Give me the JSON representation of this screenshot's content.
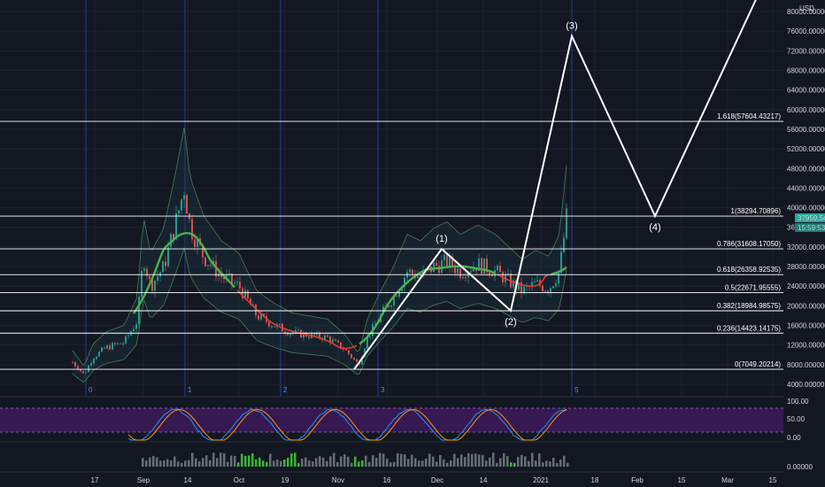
{
  "chart_data": {
    "type": "candlestick",
    "currency": "USD",
    "x_axis_labels": [
      "17",
      "Sep",
      "14",
      "Oct",
      "19",
      "Nov",
      "16",
      "Dec",
      "14",
      "2021",
      "18",
      "Feb",
      "15",
      "Mar",
      "15"
    ],
    "y_axis_labels": [
      "80000.00000",
      "76000.00000",
      "72000.00000",
      "68000.00000",
      "64000.00000",
      "60000.00000",
      "56000.00000",
      "52000.00000",
      "48000.00000",
      "44000.00000",
      "40000.00000",
      "36000.00000",
      "32000.00000",
      "28000.00000",
      "24000.00000",
      "20000.00000",
      "16000.00000",
      "12000.00000",
      "8000.00000",
      "4000.00000"
    ],
    "ylim": [
      2000,
      82000
    ],
    "last_price_label": "37959.54787",
    "countdown_label": "15:59:53",
    "fibonacci_levels": [
      {
        "label": "1.618(57604.43217)",
        "value": 57604.43217
      },
      {
        "label": "1(38294.70896)",
        "value": 38294.70896
      },
      {
        "label": "0.786(31608.17050)",
        "value": 31608.1705
      },
      {
        "label": "0.618(26358.92535)",
        "value": 26358.92535
      },
      {
        "label": "0.5(22671.95555)",
        "value": 22671.95555
      },
      {
        "label": "0.382(18984.98575)",
        "value": 18984.98575
      },
      {
        "label": "0.236(14423.14175)",
        "value": 14423.14175
      },
      {
        "label": "0(7049.20214)",
        "value": 7049.20214
      }
    ],
    "elliott_wave": {
      "points": [
        {
          "label": "",
          "value": 7049
        },
        {
          "label": "(1)",
          "value": 31608
        },
        {
          "label": "(2)",
          "value": 19000
        },
        {
          "label": "(3)",
          "value": 75000
        },
        {
          "label": "(4)",
          "value": 38294
        },
        {
          "label": "",
          "value": 84000
        }
      ]
    },
    "cycle_markers": [
      "0",
      "1",
      "2",
      "3",
      "5"
    ],
    "oscillator_axis_labels": [
      "100.00",
      "50.00",
      "0.00"
    ],
    "volume_axis_label": "0.00000"
  },
  "colors": {
    "background": "#131722",
    "grid": "#1e222d",
    "fib_line": "#ffffff",
    "wave_line": "#ffffff",
    "cycle_line": "#2962ff",
    "bull": "#26a69a",
    "bear": "#ef5350",
    "ma_green": "#4caf50",
    "ma_red": "#e53935",
    "oscillator_band": "#3d1a5c",
    "volume": "#787b86",
    "volume_bull": "#43d13a",
    "price_tag": "#26a69a"
  }
}
